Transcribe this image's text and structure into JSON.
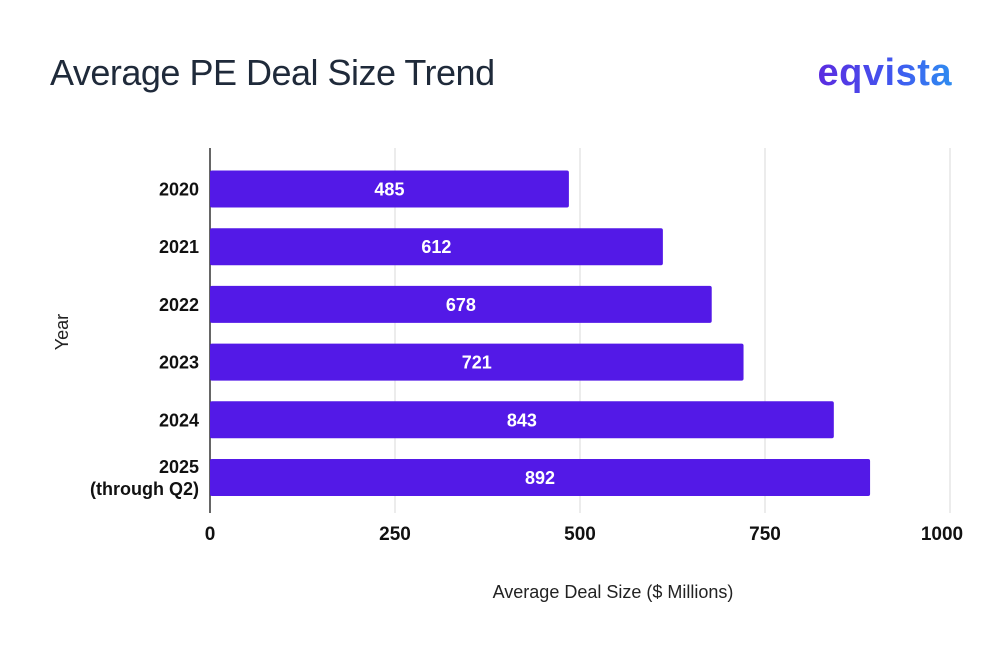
{
  "header": {
    "title": "Average PE Deal Size Trend",
    "logo": "eqvista"
  },
  "colors": {
    "bar": "#5319e7",
    "grid": "#e6e6e6",
    "axis": "#333333"
  },
  "chart_data": {
    "type": "bar",
    "orientation": "horizontal",
    "categories": [
      "2020",
      "2021",
      "2022",
      "2023",
      "2024",
      "2025\n(through Q2)"
    ],
    "values": [
      485,
      612,
      678,
      721,
      843,
      892
    ],
    "title": "",
    "xlabel": "Average Deal Size ($ Millions)",
    "ylabel": "Year",
    "xlim": [
      0,
      1000
    ],
    "xticks": [
      0,
      250,
      500,
      750,
      1000
    ],
    "grid": true,
    "data_labels": true
  }
}
